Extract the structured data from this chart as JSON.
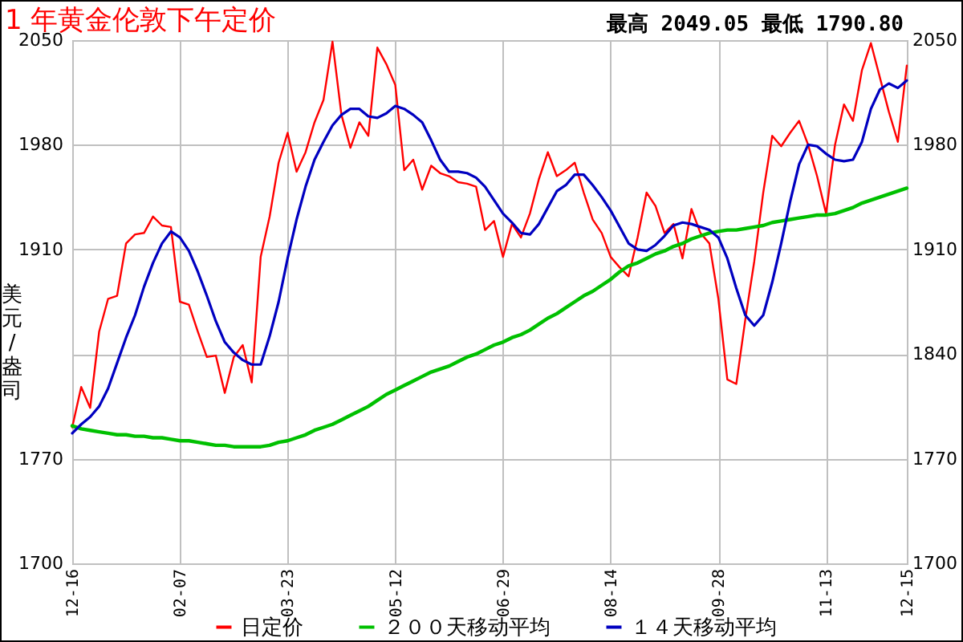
{
  "chart_data": {
    "type": "line",
    "title": "1 年黄金伦敦下午定价",
    "ylabel": "美元/盎司",
    "annotations": [
      "最高 2049.05  最低 1790.80"
    ],
    "categories": [
      "12-16",
      null,
      null,
      null,
      null,
      null,
      null,
      null,
      null,
      null,
      null,
      null,
      "02-07",
      null,
      null,
      null,
      null,
      null,
      null,
      null,
      null,
      null,
      null,
      null,
      "03-23",
      null,
      null,
      null,
      null,
      null,
      null,
      null,
      null,
      null,
      null,
      null,
      "05-12",
      null,
      null,
      null,
      null,
      null,
      null,
      null,
      null,
      null,
      null,
      null,
      "06-29",
      null,
      null,
      null,
      null,
      null,
      null,
      null,
      null,
      null,
      null,
      null,
      "08-14",
      null,
      null,
      null,
      null,
      null,
      null,
      null,
      null,
      null,
      null,
      null,
      "09-28",
      null,
      null,
      null,
      null,
      null,
      null,
      null,
      null,
      null,
      null,
      null,
      "11-13",
      null,
      null,
      null,
      null,
      null,
      null,
      null,
      null,
      "12-15"
    ],
    "series": [
      {
        "name": "日定价",
        "color": "#ff0000",
        "values": [
          1791,
          1818,
          1804,
          1855,
          1877,
          1879,
          1914,
          1920,
          1921,
          1932,
          1926,
          1925,
          1875,
          1873,
          1855,
          1838,
          1839,
          1814,
          1838,
          1846,
          1821,
          1905,
          1932,
          1968,
          1988,
          1962,
          1975,
          1995,
          2010,
          2049,
          2000,
          1978,
          1995,
          1986,
          2045,
          2034,
          2020,
          1963,
          1970,
          1950,
          1966,
          1961,
          1959,
          1955,
          1954,
          1952,
          1923,
          1929,
          1905,
          1927,
          1918,
          1934,
          1957,
          1975,
          1959,
          1963,
          1968,
          1948,
          1930,
          1921,
          1905,
          1898,
          1892,
          1918,
          1948,
          1939,
          1921,
          1927,
          1904,
          1937,
          1921,
          1914,
          1877,
          1823,
          1820,
          1863,
          1902,
          1948,
          1986,
          1979,
          1988,
          1996,
          1980,
          1959,
          1934,
          1980,
          2007,
          1996,
          2030,
          2048,
          2025,
          2002,
          1982,
          2033
        ]
      },
      {
        "name": "２００天移动平均",
        "color": "#00c000",
        "values": [
          1792,
          1790,
          1789,
          1788,
          1787,
          1786,
          1786,
          1785,
          1785,
          1784,
          1784,
          1783,
          1782,
          1782,
          1781,
          1780,
          1779,
          1779,
          1778,
          1778,
          1778,
          1778,
          1779,
          1781,
          1782,
          1784,
          1786,
          1789,
          1791,
          1793,
          1796,
          1799,
          1802,
          1805,
          1809,
          1813,
          1816,
          1819,
          1822,
          1825,
          1828,
          1830,
          1832,
          1835,
          1838,
          1840,
          1843,
          1846,
          1848,
          1851,
          1853,
          1856,
          1860,
          1864,
          1867,
          1871,
          1875,
          1879,
          1882,
          1886,
          1890,
          1895,
          1899,
          1901,
          1904,
          1907,
          1909,
          1912,
          1914,
          1917,
          1919,
          1921,
          1922,
          1923,
          1923,
          1924,
          1925,
          1926,
          1928,
          1929,
          1930,
          1931,
          1932,
          1933,
          1933,
          1934,
          1936,
          1938,
          1941,
          1943,
          1945,
          1947,
          1949,
          1951
        ]
      },
      {
        "name": "１４天移动平均",
        "color": "#0000c0",
        "values": [
          1787,
          1793,
          1798,
          1805,
          1817,
          1834,
          1851,
          1866,
          1885,
          1901,
          1914,
          1922,
          1918,
          1909,
          1895,
          1879,
          1862,
          1848,
          1841,
          1836,
          1833,
          1833,
          1852,
          1875,
          1904,
          1930,
          1952,
          1970,
          1982,
          1993,
          2000,
          2004,
          2004,
          1999,
          1998,
          2001,
          2006,
          2004,
          2000,
          1995,
          1983,
          1970,
          1962,
          1962,
          1961,
          1958,
          1952,
          1943,
          1934,
          1928,
          1921,
          1920,
          1927,
          1938,
          1949,
          1953,
          1960,
          1960,
          1953,
          1945,
          1936,
          1925,
          1914,
          1910,
          1909,
          1913,
          1919,
          1926,
          1928,
          1927,
          1925,
          1923,
          1918,
          1904,
          1884,
          1866,
          1859,
          1866,
          1888,
          1914,
          1942,
          1967,
          1980,
          1979,
          1974,
          1970,
          1969,
          1970,
          1982,
          2004,
          2017,
          2021,
          2018,
          2023
        ]
      }
    ],
    "ylim": [
      1700,
      2050
    ],
    "yticks": [
      1700,
      1770,
      {
        "value": 1840,
        "label": null
      },
      1910,
      1980,
      2050
    ],
    "y2lim": [
      1700,
      2050
    ],
    "y2ticks": [
      1700,
      1770,
      1840,
      1910,
      1980,
      2050
    ],
    "grid": true,
    "legend": "bottom",
    "marker": "none",
    "line_style": "solid"
  }
}
